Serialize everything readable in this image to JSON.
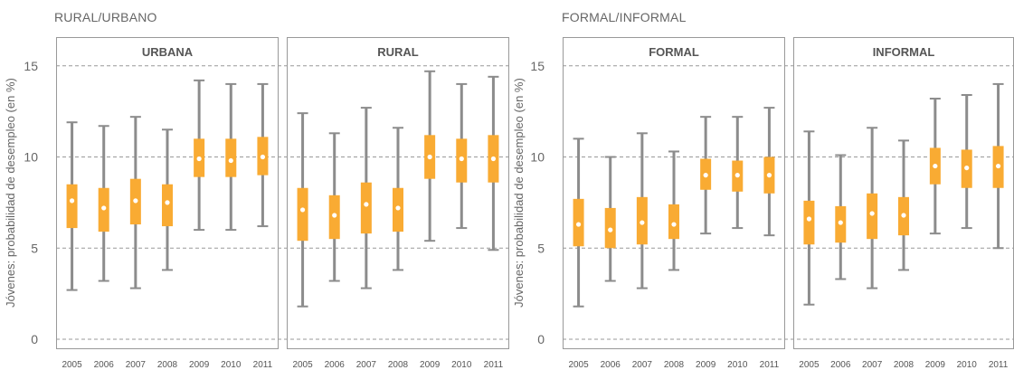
{
  "groups": [
    {
      "title": "RURAL/URBANO"
    },
    {
      "title": "FORMAL/INFORMAL"
    }
  ],
  "colors": {
    "box": "#f9ab33",
    "whisker": "#8c8c8c",
    "median": "#ffffff",
    "frame": "#999999",
    "grid": "#999999"
  },
  "chart_data": [
    {
      "type": "boxplot",
      "title": "URBANA",
      "ylabel": "Jóvenes: probabilidad de desempleo (en %)",
      "ylim": [
        0,
        15
      ],
      "yticks": [
        0,
        5,
        10,
        15
      ],
      "grid": "dashed horizontal",
      "categories": [
        "2005",
        "2006",
        "2007",
        "2008",
        "2009",
        "2010",
        "2011"
      ],
      "whisker_low": [
        2.7,
        3.2,
        2.8,
        3.8,
        6.0,
        6.0,
        6.2
      ],
      "q1": [
        6.1,
        5.9,
        6.3,
        6.2,
        8.9,
        8.9,
        9.0
      ],
      "median": [
        7.6,
        7.2,
        7.6,
        7.5,
        9.9,
        9.8,
        10.0
      ],
      "q3": [
        8.5,
        8.3,
        8.8,
        8.5,
        11.0,
        11.0,
        11.1
      ],
      "whisker_high": [
        11.9,
        11.7,
        12.2,
        11.5,
        14.2,
        14.0,
        14.0
      ]
    },
    {
      "type": "boxplot",
      "title": "RURAL",
      "ylim": [
        0,
        15
      ],
      "categories": [
        "2005",
        "2006",
        "2007",
        "2008",
        "2009",
        "2010",
        "2011"
      ],
      "whisker_low": [
        1.8,
        3.2,
        2.8,
        3.8,
        5.4,
        6.1,
        4.9
      ],
      "q1": [
        5.4,
        5.5,
        5.8,
        5.9,
        8.8,
        8.6,
        8.6
      ],
      "median": [
        7.1,
        6.8,
        7.4,
        7.2,
        10.0,
        9.9,
        9.9
      ],
      "q3": [
        8.3,
        7.9,
        8.6,
        8.3,
        11.2,
        11.0,
        11.2
      ],
      "whisker_high": [
        12.4,
        11.3,
        12.7,
        11.6,
        14.7,
        14.0,
        14.4
      ]
    },
    {
      "type": "boxplot",
      "title": "FORMAL",
      "ylabel": "Jóvenes: probabilidad de desempleo (en %)",
      "ylim": [
        0,
        15
      ],
      "yticks": [
        0,
        5,
        10,
        15
      ],
      "grid": "dashed horizontal",
      "categories": [
        "2005",
        "2006",
        "2007",
        "2008",
        "2009",
        "2010",
        "2011"
      ],
      "whisker_low": [
        1.8,
        3.2,
        2.8,
        3.8,
        5.8,
        6.1,
        5.7
      ],
      "q1": [
        5.1,
        5.0,
        5.2,
        5.5,
        8.2,
        8.1,
        8.0
      ],
      "median": [
        6.3,
        6.0,
        6.4,
        6.3,
        9.0,
        9.0,
        9.0
      ],
      "q3": [
        7.7,
        7.2,
        7.8,
        7.4,
        9.9,
        9.8,
        10.0
      ],
      "whisker_high": [
        11.0,
        10.0,
        11.3,
        10.3,
        12.2,
        12.2,
        12.7
      ]
    },
    {
      "type": "boxplot",
      "title": "INFORMAL",
      "ylim": [
        0,
        15
      ],
      "categories": [
        "2005",
        "2006",
        "2007",
        "2008",
        "2009",
        "2010",
        "2011"
      ],
      "whisker_low": [
        1.9,
        3.3,
        2.8,
        3.8,
        5.8,
        6.1,
        5.0
      ],
      "q1": [
        5.2,
        5.3,
        5.5,
        5.7,
        8.5,
        8.3,
        8.3
      ],
      "median": [
        6.6,
        6.4,
        6.9,
        6.8,
        9.5,
        9.4,
        9.5
      ],
      "q3": [
        7.6,
        7.3,
        8.0,
        7.8,
        10.5,
        10.4,
        10.6
      ],
      "whisker_high": [
        11.4,
        10.1,
        11.6,
        10.9,
        13.2,
        13.4,
        14.0
      ]
    }
  ]
}
